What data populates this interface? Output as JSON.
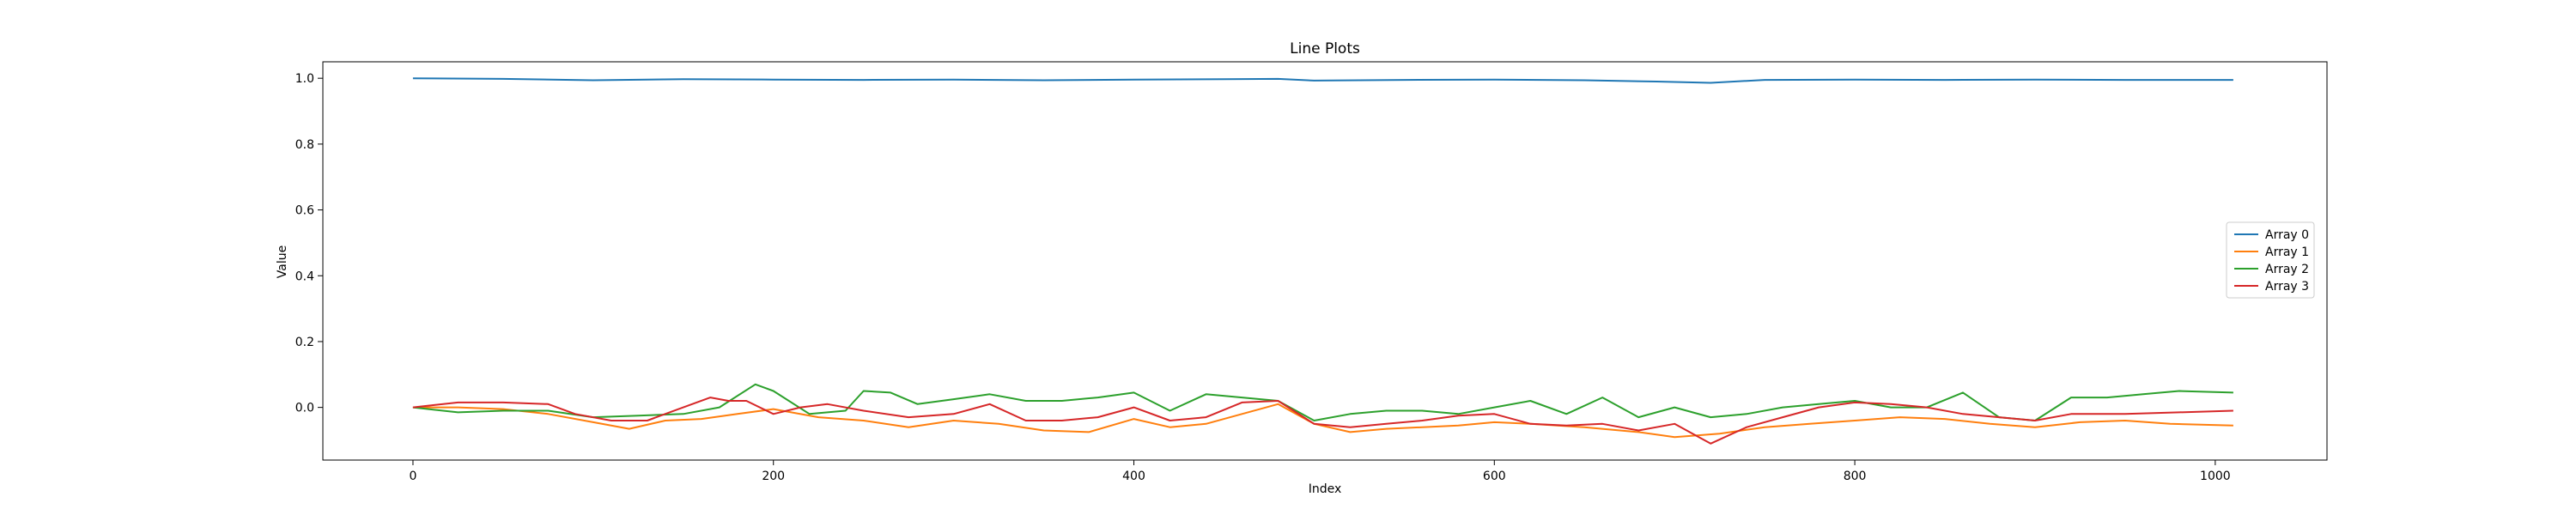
{
  "chart_data": {
    "type": "line",
    "title": "Line Plots",
    "xlabel": "Index",
    "ylabel": "Value",
    "xlim": [
      -50,
      1062
    ],
    "ylim": [
      -0.16,
      1.05
    ],
    "xticks": [
      0,
      200,
      400,
      600,
      800,
      1000
    ],
    "yticks": [
      0.0,
      0.2,
      0.4,
      0.6,
      0.8,
      1.0
    ],
    "ytick_labels": [
      "0.0",
      "0.2",
      "0.4",
      "0.6",
      "0.8",
      "1.0"
    ],
    "grid": false,
    "legend_position": "center-right",
    "series": [
      {
        "name": "Array 0",
        "color": "#1f77b4",
        "x": [
          0,
          50,
          100,
          150,
          200,
          250,
          300,
          350,
          400,
          450,
          480,
          500,
          550,
          600,
          650,
          690,
          720,
          750,
          800,
          850,
          900,
          950,
          1010
        ],
        "values": [
          1.0,
          0.998,
          0.994,
          0.997,
          0.996,
          0.995,
          0.996,
          0.994,
          0.996,
          0.997,
          0.998,
          0.993,
          0.995,
          0.996,
          0.994,
          0.99,
          0.986,
          0.995,
          0.996,
          0.995,
          0.996,
          0.995,
          0.995
        ]
      },
      {
        "name": "Array 1",
        "color": "#ff7f0e",
        "x": [
          0,
          25,
          50,
          75,
          100,
          120,
          140,
          160,
          180,
          200,
          225,
          250,
          275,
          300,
          325,
          350,
          375,
          400,
          420,
          440,
          460,
          480,
          500,
          520,
          540,
          560,
          580,
          600,
          620,
          650,
          680,
          700,
          725,
          750,
          775,
          800,
          825,
          850,
          875,
          900,
          925,
          950,
          975,
          1010
        ],
        "values": [
          0.0,
          0.0,
          -0.005,
          -0.02,
          -0.045,
          -0.065,
          -0.04,
          -0.035,
          -0.02,
          -0.005,
          -0.03,
          -0.04,
          -0.06,
          -0.04,
          -0.05,
          -0.07,
          -0.075,
          -0.035,
          -0.06,
          -0.05,
          -0.02,
          0.01,
          -0.05,
          -0.075,
          -0.065,
          -0.06,
          -0.055,
          -0.045,
          -0.05,
          -0.06,
          -0.075,
          -0.09,
          -0.08,
          -0.06,
          -0.05,
          -0.04,
          -0.03,
          -0.035,
          -0.05,
          -0.06,
          -0.045,
          -0.04,
          -0.05,
          -0.055
        ]
      },
      {
        "name": "Array 2",
        "color": "#2ca02c",
        "x": [
          0,
          25,
          50,
          75,
          100,
          125,
          150,
          170,
          190,
          200,
          220,
          240,
          250,
          265,
          280,
          300,
          320,
          340,
          360,
          380,
          400,
          420,
          440,
          460,
          480,
          500,
          520,
          540,
          560,
          580,
          600,
          620,
          640,
          660,
          680,
          700,
          720,
          740,
          760,
          780,
          800,
          820,
          840,
          860,
          880,
          900,
          920,
          940,
          960,
          980,
          1010
        ],
        "values": [
          0.0,
          -0.015,
          -0.01,
          -0.01,
          -0.03,
          -0.025,
          -0.02,
          0.0,
          0.07,
          0.05,
          -0.02,
          -0.01,
          0.05,
          0.045,
          0.01,
          0.025,
          0.04,
          0.02,
          0.02,
          0.03,
          0.045,
          -0.01,
          0.04,
          0.03,
          0.02,
          -0.04,
          -0.02,
          -0.01,
          -0.01,
          -0.02,
          0.0,
          0.02,
          -0.02,
          0.03,
          -0.03,
          0.0,
          -0.03,
          -0.02,
          0.0,
          0.01,
          0.02,
          0.0,
          0.0,
          0.045,
          -0.03,
          -0.04,
          0.03,
          0.03,
          0.04,
          0.05,
          0.045
        ]
      },
      {
        "name": "Array 3",
        "color": "#d62728",
        "x": [
          0,
          25,
          50,
          75,
          90,
          110,
          130,
          150,
          165,
          175,
          185,
          200,
          215,
          230,
          250,
          275,
          300,
          320,
          340,
          360,
          380,
          400,
          420,
          440,
          460,
          480,
          500,
          520,
          540,
          560,
          580,
          600,
          620,
          640,
          660,
          680,
          700,
          720,
          740,
          760,
          780,
          800,
          820,
          840,
          860,
          880,
          900,
          920,
          950,
          980,
          1010
        ],
        "values": [
          0.0,
          0.015,
          0.015,
          0.01,
          -0.02,
          -0.04,
          -0.04,
          0.0,
          0.03,
          0.02,
          0.02,
          -0.02,
          0.0,
          0.01,
          -0.01,
          -0.03,
          -0.02,
          0.01,
          -0.04,
          -0.04,
          -0.03,
          0.0,
          -0.04,
          -0.03,
          0.015,
          0.02,
          -0.05,
          -0.06,
          -0.05,
          -0.04,
          -0.025,
          -0.02,
          -0.05,
          -0.055,
          -0.05,
          -0.07,
          -0.05,
          -0.11,
          -0.06,
          -0.03,
          0.0,
          0.015,
          0.01,
          0.0,
          -0.02,
          -0.03,
          -0.04,
          -0.02,
          -0.02,
          -0.015,
          -0.01
        ]
      }
    ]
  }
}
